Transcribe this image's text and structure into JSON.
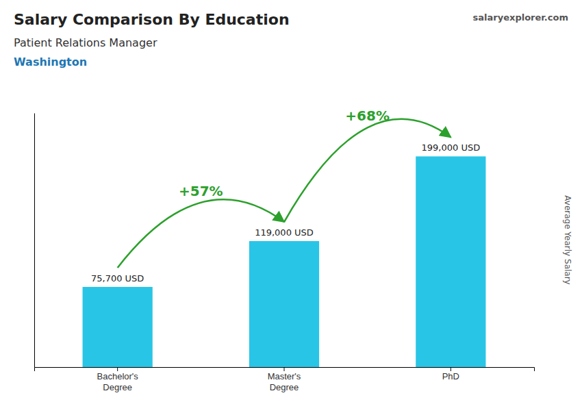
{
  "chart_data": {
    "type": "bar",
    "title": "Salary Comparison By Education",
    "subtitle": "Patient Relations Manager",
    "ylabel": "Average Yearly Salary",
    "categories": [
      "Bachelor's\nDegree",
      "Master's\nDegree",
      "PhD"
    ],
    "values": [
      75700,
      119000,
      199000
    ],
    "value_labels": [
      "75,700 USD",
      "119,000 USD",
      "199,000 USD"
    ],
    "data_labels": true,
    "color": "#29c5e6",
    "ylim": [
      0,
      240000
    ],
    "tick_labels": "x",
    "grid": false,
    "annotations": [
      {
        "text": "Washington"
      },
      {
        "text": "salaryexplorer.com"
      },
      {
        "text": "+57%",
        "from": "Bachelor's\nDegree",
        "to": "Master's\nDegree"
      },
      {
        "text": "+68%",
        "from": "Master's\nDegree",
        "to": "PhD"
      }
    ]
  }
}
